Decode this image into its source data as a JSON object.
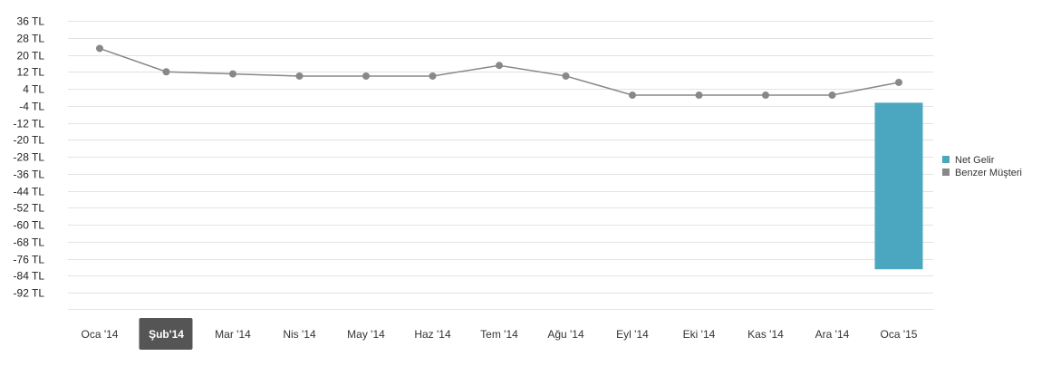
{
  "chart_data": {
    "type": "bar",
    "categories": [
      "Oca '14",
      "Şub'14",
      "Mar '14",
      "Nis '14",
      "May '14",
      "Haz '14",
      "Tem '14",
      "Ağu '14",
      "Eyl '14",
      "Eki '14",
      "Kas '14",
      "Ara '14",
      "Oca '15"
    ],
    "selected_category": "Şub'14",
    "series": [
      {
        "name": "Net Gelir",
        "type": "bar",
        "color": "#4ba7bf",
        "values": [
          null,
          null,
          null,
          null,
          null,
          null,
          null,
          null,
          null,
          null,
          null,
          null,
          -81
        ]
      },
      {
        "name": "Benzer Müşteri",
        "type": "line",
        "color": "#888888",
        "values": [
          23,
          12,
          11,
          10,
          10,
          10,
          15,
          10,
          1,
          1,
          1,
          1,
          7
        ]
      }
    ],
    "yticks": [
      36,
      28,
      20,
      12,
      4,
      -4,
      -12,
      -20,
      -28,
      -36,
      -44,
      -52,
      -60,
      -68,
      -76,
      -84,
      -92
    ],
    "ytick_labels": [
      "36 TL",
      "28 TL",
      "20 TL",
      "12 TL",
      "4 TL",
      "-4 TL",
      "-12 TL",
      "-20 TL",
      "-28 TL",
      "-36 TL",
      "-44 TL",
      "-52 TL",
      "-60 TL",
      "-68 TL",
      "-76 TL",
      "-84 TL",
      "-92 TL"
    ],
    "ylim": [
      -100,
      40
    ],
    "grid": true,
    "legend_position": "right",
    "title": "",
    "xlabel": "",
    "ylabel": ""
  }
}
